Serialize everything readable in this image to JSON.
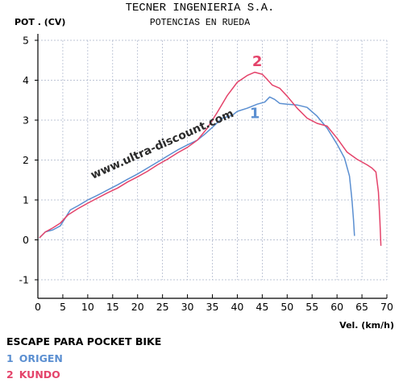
{
  "header": {
    "company": "TECNER INGENIERIA S.A.",
    "subtitle": "POTENCIAS EN RUEDA"
  },
  "watermark": "www.ultra-discount.com",
  "caption": {
    "title": "ESCAPE PARA POCKET BIKE",
    "legend": [
      {
        "number": "1",
        "label": "ORIGEN",
        "color": "#5b8fd1"
      },
      {
        "number": "2",
        "label": "KUNDO",
        "color": "#e4436a"
      }
    ]
  },
  "colors": {
    "grid": "#a8b2c8",
    "axis": "#000000",
    "watermark": "#2a2a2a"
  },
  "chart_data": {
    "type": "line",
    "ylabel": "POT . (CV)",
    "xlabel": "Vel. (km/h)",
    "xlim": [
      0,
      70
    ],
    "ylim": [
      -1,
      5
    ],
    "x_ticks": [
      0,
      5,
      10,
      15,
      20,
      25,
      30,
      35,
      40,
      45,
      50,
      55,
      60,
      65,
      70
    ],
    "y_ticks": [
      -1,
      0,
      1,
      2,
      3,
      4,
      5
    ],
    "grid": true,
    "series": [
      {
        "name": "1",
        "color": "#5b8fd1",
        "label_at": {
          "x": 43.5,
          "y": 3.05
        },
        "points": [
          [
            0.3,
            0.05
          ],
          [
            1.5,
            0.2
          ],
          [
            3,
            0.25
          ],
          [
            4.5,
            0.35
          ],
          [
            5.5,
            0.55
          ],
          [
            6.5,
            0.75
          ],
          [
            8,
            0.85
          ],
          [
            10,
            1.0
          ],
          [
            12,
            1.12
          ],
          [
            14,
            1.25
          ],
          [
            16,
            1.38
          ],
          [
            18,
            1.52
          ],
          [
            20,
            1.65
          ],
          [
            22,
            1.8
          ],
          [
            24,
            1.95
          ],
          [
            26,
            2.1
          ],
          [
            28,
            2.25
          ],
          [
            30,
            2.38
          ],
          [
            32,
            2.5
          ],
          [
            33.5,
            2.65
          ],
          [
            35,
            2.82
          ],
          [
            37,
            3.05
          ],
          [
            39,
            3.12
          ],
          [
            40,
            3.22
          ],
          [
            42,
            3.3
          ],
          [
            44,
            3.4
          ],
          [
            45.5,
            3.45
          ],
          [
            46.5,
            3.58
          ],
          [
            47.5,
            3.52
          ],
          [
            48.5,
            3.42
          ],
          [
            50,
            3.4
          ],
          [
            52,
            3.38
          ],
          [
            54,
            3.32
          ],
          [
            56,
            3.1
          ],
          [
            58,
            2.8
          ],
          [
            60,
            2.4
          ],
          [
            61.5,
            2.05
          ],
          [
            62.5,
            1.6
          ],
          [
            63,
            1.0
          ],
          [
            63.3,
            0.5
          ],
          [
            63.5,
            0.1
          ]
        ]
      },
      {
        "name": "2",
        "color": "#e4436a",
        "label_at": {
          "x": 44,
          "y": 4.35
        },
        "points": [
          [
            0.3,
            0.05
          ],
          [
            1.5,
            0.2
          ],
          [
            3,
            0.3
          ],
          [
            4.5,
            0.42
          ],
          [
            6,
            0.62
          ],
          [
            8,
            0.78
          ],
          [
            10,
            0.92
          ],
          [
            12,
            1.05
          ],
          [
            14,
            1.18
          ],
          [
            16,
            1.3
          ],
          [
            18,
            1.45
          ],
          [
            20,
            1.58
          ],
          [
            22,
            1.72
          ],
          [
            24,
            1.88
          ],
          [
            26,
            2.02
          ],
          [
            28,
            2.18
          ],
          [
            30,
            2.32
          ],
          [
            32,
            2.5
          ],
          [
            34,
            2.8
          ],
          [
            36,
            3.2
          ],
          [
            38,
            3.62
          ],
          [
            40,
            3.95
          ],
          [
            42,
            4.12
          ],
          [
            43.5,
            4.2
          ],
          [
            45,
            4.15
          ],
          [
            46,
            4.02
          ],
          [
            47,
            3.88
          ],
          [
            48.5,
            3.8
          ],
          [
            50,
            3.6
          ],
          [
            52,
            3.3
          ],
          [
            54,
            3.05
          ],
          [
            56,
            2.92
          ],
          [
            58,
            2.85
          ],
          [
            60,
            2.55
          ],
          [
            62,
            2.2
          ],
          [
            64,
            2.02
          ],
          [
            66,
            1.88
          ],
          [
            67,
            1.8
          ],
          [
            67.8,
            1.7
          ],
          [
            68.3,
            1.2
          ],
          [
            68.6,
            0.5
          ],
          [
            68.8,
            -0.15
          ]
        ]
      }
    ]
  }
}
